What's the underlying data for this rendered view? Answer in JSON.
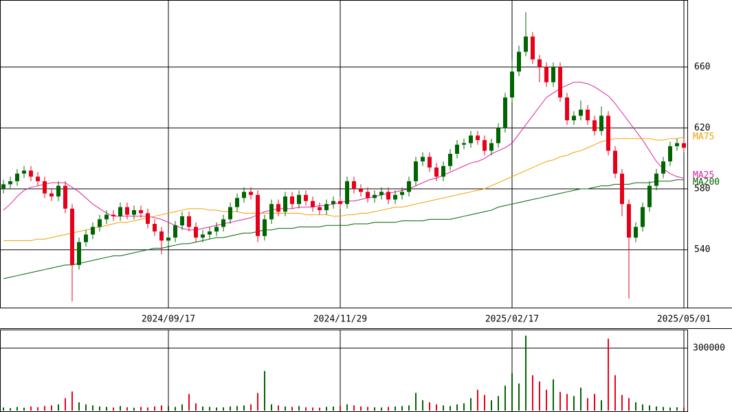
{
  "chart_data": [
    {
      "type": "candlestick",
      "categories": [
        null,
        null,
        null,
        null,
        null,
        null,
        null,
        null,
        null,
        null,
        null,
        null,
        null,
        null,
        null,
        null,
        null,
        null,
        null,
        null,
        null,
        null,
        null,
        null,
        "2024/09/17",
        null,
        null,
        null,
        null,
        null,
        null,
        null,
        null,
        null,
        null,
        null,
        null,
        null,
        null,
        null,
        null,
        null,
        null,
        null,
        null,
        null,
        null,
        null,
        null,
        "2024/11/29",
        null,
        null,
        null,
        null,
        null,
        null,
        null,
        null,
        null,
        null,
        null,
        null,
        null,
        null,
        null,
        null,
        null,
        null,
        null,
        null,
        null,
        null,
        null,
        null,
        "2025/02/17",
        null,
        null,
        null,
        null,
        null,
        null,
        null,
        null,
        null,
        null,
        null,
        null,
        null,
        null,
        null,
        null,
        null,
        null,
        null,
        null,
        null,
        null,
        null,
        null,
        "2025/05/01"
      ],
      "open": [
        580,
        583,
        585,
        590,
        592,
        588,
        585,
        577,
        575,
        582,
        567,
        530,
        545,
        550,
        555,
        560,
        563,
        562,
        568,
        563,
        566,
        564,
        557,
        552,
        546,
        548,
        556,
        562,
        555,
        548,
        550,
        552,
        555,
        560,
        568,
        574,
        578,
        576,
        549,
        560,
        570,
        565,
        575,
        570,
        576,
        572,
        568,
        566,
        570,
        572,
        570,
        585,
        580,
        578,
        574,
        576,
        578,
        573,
        576,
        578,
        585,
        598,
        601,
        594,
        588,
        595,
        603,
        609,
        610,
        615,
        612,
        605,
        610,
        620,
        640,
        657,
        670,
        680,
        665,
        660,
        650,
        660,
        640,
        625,
        628,
        632,
        625,
        618,
        628,
        605,
        590,
        570,
        548,
        555,
        568,
        582,
        590,
        598,
        608,
        610
      ],
      "high": [
        586,
        588,
        593,
        595,
        595,
        591,
        588,
        580,
        585,
        585,
        570,
        548,
        553,
        558,
        563,
        566,
        566,
        571,
        571,
        569,
        569,
        567,
        560,
        555,
        551,
        559,
        565,
        565,
        558,
        553,
        555,
        558,
        563,
        571,
        577,
        581,
        581,
        579,
        563,
        573,
        573,
        578,
        578,
        579,
        579,
        575,
        571,
        573,
        575,
        575,
        588,
        588,
        583,
        581,
        579,
        581,
        581,
        579,
        581,
        588,
        601,
        604,
        604,
        597,
        598,
        606,
        612,
        613,
        618,
        618,
        615,
        613,
        623,
        643,
        665,
        674,
        696,
        683,
        668,
        663,
        663,
        663,
        643,
        631,
        638,
        635,
        628,
        634,
        631,
        608,
        593,
        573,
        558,
        571,
        585,
        593,
        601,
        611,
        613,
        613
      ],
      "low": [
        577,
        580,
        582,
        587,
        585,
        582,
        574,
        572,
        572,
        564,
        506,
        527,
        542,
        547,
        552,
        557,
        559,
        559,
        560,
        560,
        561,
        554,
        549,
        537,
        543,
        545,
        553,
        552,
        545,
        545,
        547,
        549,
        552,
        557,
        565,
        571,
        573,
        545,
        546,
        557,
        562,
        562,
        567,
        567,
        569,
        565,
        563,
        563,
        567,
        567,
        567,
        577,
        575,
        571,
        571,
        573,
        570,
        570,
        573,
        575,
        582,
        595,
        591,
        585,
        585,
        592,
        600,
        606,
        607,
        609,
        602,
        602,
        607,
        617,
        637,
        654,
        667,
        662,
        650,
        647,
        647,
        637,
        622,
        622,
        625,
        622,
        615,
        615,
        602,
        587,
        562,
        508,
        545,
        552,
        565,
        579,
        587,
        595,
        605,
        604
      ],
      "close": [
        583,
        585,
        590,
        592,
        588,
        585,
        577,
        575,
        582,
        567,
        530,
        545,
        550,
        555,
        560,
        563,
        562,
        568,
        563,
        566,
        564,
        557,
        552,
        546,
        548,
        556,
        562,
        555,
        548,
        550,
        552,
        555,
        560,
        568,
        574,
        578,
        576,
        549,
        560,
        570,
        565,
        575,
        570,
        576,
        572,
        568,
        566,
        570,
        572,
        570,
        585,
        580,
        578,
        574,
        576,
        578,
        573,
        576,
        578,
        585,
        598,
        601,
        594,
        588,
        595,
        603,
        609,
        610,
        615,
        612,
        605,
        610,
        620,
        640,
        657,
        670,
        680,
        665,
        660,
        650,
        660,
        640,
        625,
        628,
        632,
        625,
        618,
        628,
        605,
        590,
        570,
        548,
        555,
        568,
        582,
        590,
        598,
        608,
        610,
        607
      ],
      "up_color": "#006400",
      "down_color": "#e8001a",
      "series": [
        {
          "name": "MA25",
          "color": "#e0209a",
          "values": [
            566,
            570,
            575,
            579,
            581,
            582,
            583,
            584,
            584,
            584,
            581,
            578,
            574,
            570,
            567,
            564,
            562,
            562,
            562,
            562,
            562,
            562,
            561,
            560,
            558,
            556,
            554,
            553,
            553,
            554,
            555,
            556,
            557,
            558,
            559,
            560,
            561,
            563,
            565,
            566,
            567,
            567,
            567,
            568,
            568,
            568,
            569,
            569,
            570,
            571,
            572,
            572,
            573,
            574,
            575,
            576,
            577,
            578,
            579,
            580,
            582,
            584,
            586,
            587,
            589,
            591,
            593,
            595,
            597,
            598,
            600,
            603,
            605,
            607,
            610,
            616,
            622,
            628,
            634,
            640,
            643,
            646,
            648,
            650,
            650,
            649,
            647,
            644,
            641,
            636,
            630,
            624,
            618,
            612,
            605,
            598,
            593,
            590,
            588,
            587
          ]
        },
        {
          "name": "MA75",
          "color": "#f0a000",
          "values": [
            546,
            546,
            546,
            546,
            546,
            547,
            547,
            548,
            549,
            550,
            551,
            552,
            553,
            554,
            555,
            556,
            557,
            558,
            558,
            559,
            560,
            561,
            562,
            563,
            564,
            565,
            566,
            567,
            567,
            567,
            566,
            566,
            565,
            565,
            565,
            564,
            564,
            564,
            564,
            564,
            564,
            564,
            564,
            564,
            563,
            563,
            563,
            563,
            562,
            562,
            563,
            563,
            564,
            564,
            565,
            566,
            567,
            568,
            568,
            569,
            570,
            571,
            572,
            573,
            574,
            575,
            576,
            577,
            578,
            579,
            580,
            582,
            584,
            586,
            588,
            590,
            592,
            594,
            596,
            598,
            599,
            601,
            602,
            604,
            605,
            607,
            609,
            611,
            612,
            613,
            613,
            613,
            613,
            613,
            613,
            612,
            612,
            613,
            613,
            614
          ]
        },
        {
          "name": "MA200",
          "color": "#006400",
          "values": [
            521,
            522,
            523,
            524,
            525,
            526,
            527,
            528,
            529,
            530,
            530,
            531,
            532,
            533,
            534,
            535,
            536,
            536,
            537,
            538,
            539,
            540,
            541,
            541,
            542,
            543,
            544,
            544,
            545,
            546,
            547,
            548,
            548,
            549,
            550,
            551,
            551,
            552,
            553,
            553,
            554,
            554,
            554,
            555,
            555,
            555,
            555,
            556,
            556,
            556,
            556,
            557,
            557,
            557,
            558,
            558,
            558,
            558,
            559,
            559,
            559,
            559,
            560,
            560,
            560,
            560,
            561,
            562,
            563,
            564,
            565,
            566,
            568,
            569,
            570,
            571,
            572,
            573,
            574,
            575,
            576,
            577,
            578,
            579,
            580,
            580,
            581,
            582,
            582,
            583,
            583,
            583,
            584,
            584,
            584,
            585,
            585,
            585,
            586,
            586
          ]
        }
      ],
      "ylim": [
        502,
        704
      ],
      "yticks": [
        540,
        580,
        620,
        660
      ],
      "grid": true
    },
    {
      "type": "bar",
      "values": [
        15000,
        12000,
        18000,
        14000,
        20000,
        16000,
        22000,
        25000,
        30000,
        60000,
        92000,
        40000,
        30000,
        25000,
        20000,
        18000,
        15000,
        22000,
        16000,
        14000,
        18000,
        15000,
        20000,
        25000,
        22000,
        18000,
        30000,
        80000,
        35000,
        20000,
        18000,
        15000,
        16000,
        20000,
        22000,
        25000,
        30000,
        85000,
        190000,
        30000,
        25000,
        20000,
        18000,
        22000,
        16000,
        15000,
        14000,
        18000,
        20000,
        22000,
        30000,
        25000,
        20000,
        18000,
        16000,
        15000,
        18000,
        20000,
        22000,
        25000,
        85000,
        50000,
        40000,
        30000,
        25000,
        22000,
        30000,
        35000,
        60000,
        100000,
        75000,
        50000,
        70000,
        120000,
        180000,
        130000,
        360000,
        170000,
        140000,
        100000,
        150000,
        90000,
        80000,
        70000,
        110000,
        60000,
        80000,
        50000,
        345000,
        170000,
        75000,
        60000,
        40000,
        30000,
        25000,
        20000,
        18000,
        15000,
        16000,
        14000
      ],
      "ylim": [
        0,
        389000
      ],
      "yticks": [
        300000
      ],
      "grid": true
    }
  ]
}
